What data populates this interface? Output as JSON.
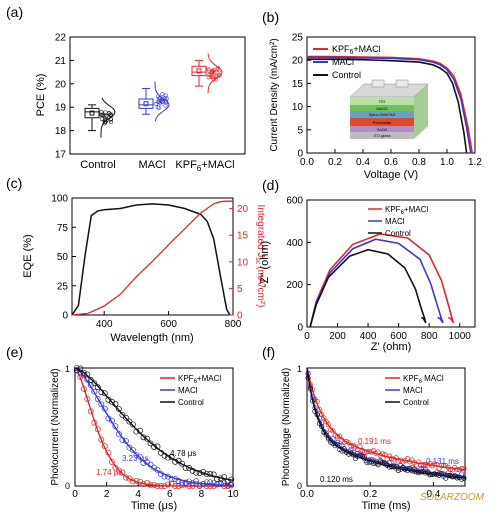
{
  "colors": {
    "control": "#111111",
    "maci": "#3a3ad0",
    "kpf": "#e0262a",
    "grid": "#000000"
  },
  "chart_data": [
    {
      "panel": "(a)",
      "type": "box",
      "categories": [
        "Control",
        "MACl",
        "KPF6+MACl"
      ],
      "category_labels": [
        "Control",
        "MACl",
        "KPF",
        "6",
        "+MACl"
      ],
      "ylabel": "PCE (%)",
      "ylim": [
        17,
        22
      ],
      "yticks": [
        "17",
        "18",
        "19",
        "20",
        "21",
        "22"
      ],
      "series": [
        {
          "stats": {
            "min": 18.0,
            "q1": 18.55,
            "median": 18.8,
            "q3": 18.95,
            "max": 19.1
          }
        },
        {
          "stats": {
            "min": 18.7,
            "q1": 18.95,
            "median": 19.1,
            "q3": 19.35,
            "max": 19.8
          }
        },
        {
          "stats": {
            "min": 19.9,
            "q1": 20.35,
            "median": 20.5,
            "q3": 20.75,
            "max": 21.0
          }
        }
      ]
    },
    {
      "panel": "(b)",
      "type": "line",
      "xlabel": "Voltage (V)",
      "ylabel": "Current Density (mA/cm²)",
      "xlim": [
        0,
        1.2
      ],
      "ylim": [
        0,
        25
      ],
      "xticks": [
        "0.0",
        "0.2",
        "0.4",
        "0.6",
        "0.8",
        "1.0",
        "1.2"
      ],
      "yticks": [
        "0",
        "5",
        "10",
        "15",
        "20",
        "25"
      ],
      "legend": [
        "KPF6+MACl",
        "MACl",
        "Control"
      ],
      "legend_labels": [
        "KPF",
        "6",
        "+MACl",
        "MACl",
        "Control"
      ],
      "series": [
        {
          "x": [
            0,
            0.2,
            0.4,
            0.6,
            0.8,
            0.9,
            0.95,
            1.0,
            1.05,
            1.1,
            1.15,
            1.18
          ],
          "y": [
            20.8,
            20.8,
            20.7,
            20.6,
            20.3,
            19.8,
            19.3,
            18.3,
            16.5,
            12.5,
            5.5,
            0
          ]
        },
        {
          "x": [
            0,
            0.2,
            0.4,
            0.6,
            0.8,
            0.9,
            0.95,
            1.0,
            1.05,
            1.1,
            1.14,
            1.17
          ],
          "y": [
            20.6,
            20.6,
            20.5,
            20.4,
            20.1,
            19.6,
            19.0,
            18.0,
            15.8,
            11.5,
            5.5,
            0
          ]
        },
        {
          "x": [
            0,
            0.2,
            0.4,
            0.6,
            0.8,
            0.9,
            0.95,
            1.0,
            1.04,
            1.08,
            1.12,
            1.14
          ],
          "y": [
            20.2,
            20.2,
            20.1,
            19.9,
            19.6,
            19.0,
            18.3,
            17.2,
            15.0,
            11.0,
            4.5,
            0
          ]
        }
      ],
      "inset_layers": [
        "ITO",
        "MoO3",
        "Spiro-OMeTAD",
        "Perovskite",
        "SnO2",
        "ITO glass"
      ]
    },
    {
      "panel": "(c)",
      "type": "line",
      "xlabel": "Wavelength (nm)",
      "ylabel": "EQE (%)",
      "y2label": "Integrated J",
      "y2label_sub": "sc",
      "y2label_unit": "(mA/cm²)",
      "xlim": [
        300,
        800
      ],
      "ylim": [
        0,
        100
      ],
      "y2lim": [
        0,
        22
      ],
      "xticks": [
        "400",
        "600",
        "800"
      ],
      "yticks": [
        "0",
        "25",
        "50",
        "75",
        "100"
      ],
      "y2ticks": [
        "0",
        "5",
        "10",
        "15",
        "20"
      ],
      "series": [
        {
          "axis": "left",
          "x": [
            300,
            320,
            340,
            360,
            380,
            400,
            450,
            500,
            550,
            600,
            650,
            700,
            720,
            740,
            760,
            780,
            790
          ],
          "y": [
            0,
            8,
            50,
            85,
            89,
            90,
            91,
            94,
            95,
            94,
            91,
            86,
            80,
            65,
            35,
            5,
            0
          ]
        },
        {
          "axis": "right",
          "x": [
            300,
            350,
            400,
            450,
            500,
            550,
            600,
            650,
            700,
            740,
            760,
            780,
            800
          ],
          "y": [
            0,
            0.3,
            1.7,
            3.9,
            7.2,
            10.1,
            13.2,
            16.2,
            19.2,
            20.9,
            21.3,
            21.4,
            21.4
          ]
        }
      ]
    },
    {
      "panel": "(d)",
      "type": "line",
      "xlabel": "Z' (ohm)",
      "ylabel": "-Z'' (ohm)",
      "xlim": [
        0,
        1100
      ],
      "ylim": [
        0,
        600
      ],
      "xticks": [
        "0",
        "200",
        "400",
        "600",
        "800",
        "1000"
      ],
      "yticks": [
        "0",
        "200",
        "400",
        "600"
      ],
      "legend": [
        "KPF6+MACl",
        "MACl",
        "Control"
      ],
      "legend_labels": [
        "KPF",
        "6",
        "+MACl",
        "MACl",
        "Control"
      ],
      "series": [
        {
          "x": [
            20,
            60,
            150,
            300,
            480,
            660,
            800,
            880,
            920,
            950,
            960,
            940,
            925
          ],
          "y": [
            0,
            120,
            270,
            390,
            440,
            420,
            340,
            220,
            120,
            40,
            20,
            40,
            45
          ]
        },
        {
          "x": [
            20,
            60,
            150,
            300,
            450,
            600,
            740,
            810,
            850,
            880,
            890,
            870,
            855
          ],
          "y": [
            0,
            115,
            255,
            370,
            415,
            395,
            320,
            205,
            110,
            40,
            20,
            40,
            45
          ]
        },
        {
          "x": [
            20,
            60,
            140,
            280,
            400,
            530,
            640,
            710,
            745,
            770,
            778,
            762,
            750
          ],
          "y": [
            0,
            105,
            235,
            335,
            365,
            345,
            280,
            180,
            95,
            40,
            20,
            40,
            45
          ]
        }
      ]
    },
    {
      "panel": "(e)",
      "type": "scatter+line",
      "xlabel": "Time (μs)",
      "ylabel": "Photocurrent (Normalized)",
      "xlim": [
        0,
        10
      ],
      "ylim": [
        0,
        1
      ],
      "xticks": [
        "0",
        "2",
        "4",
        "6",
        "8",
        "10"
      ],
      "legend": [
        "KPF6+MACl",
        "MACl",
        "Control"
      ],
      "legend_labels": [
        "KPF",
        "6",
        "+MACl",
        "MACl",
        "Control"
      ],
      "annotations": [
        "4.78 μs",
        "3.23 μs",
        "1.74 μs"
      ],
      "series": [
        {
          "tau": 1.74
        },
        {
          "tau": 3.23
        },
        {
          "tau": 4.78
        }
      ]
    },
    {
      "panel": "(f)",
      "type": "scatter+line",
      "xlabel": "Time (ms)",
      "ylabel": "Photovoltage (Normalized)",
      "xlim": [
        0,
        0.5
      ],
      "ylim": [
        0,
        1
      ],
      "xticks": [
        "0.0",
        "0.2",
        "0.4"
      ],
      "legend": [
        "KPF6 MACl",
        "MACl",
        "Control"
      ],
      "legend_labels": [
        "KPF",
        "6",
        " MACl",
        "MACl",
        "Control"
      ],
      "annotations": [
        "0.191 ms",
        "0.131 ms",
        "0.120 ms"
      ],
      "series": [
        {
          "tau": 0.191
        },
        {
          "tau": 0.131
        },
        {
          "tau": 0.12
        }
      ]
    }
  ],
  "panel_labels": [
    "(a)",
    "(b)",
    "(c)",
    "(d)",
    "(e)",
    "(f)"
  ],
  "tick_one": "1",
  "tick_zero": "0",
  "watermark": "SOLARZOOM"
}
